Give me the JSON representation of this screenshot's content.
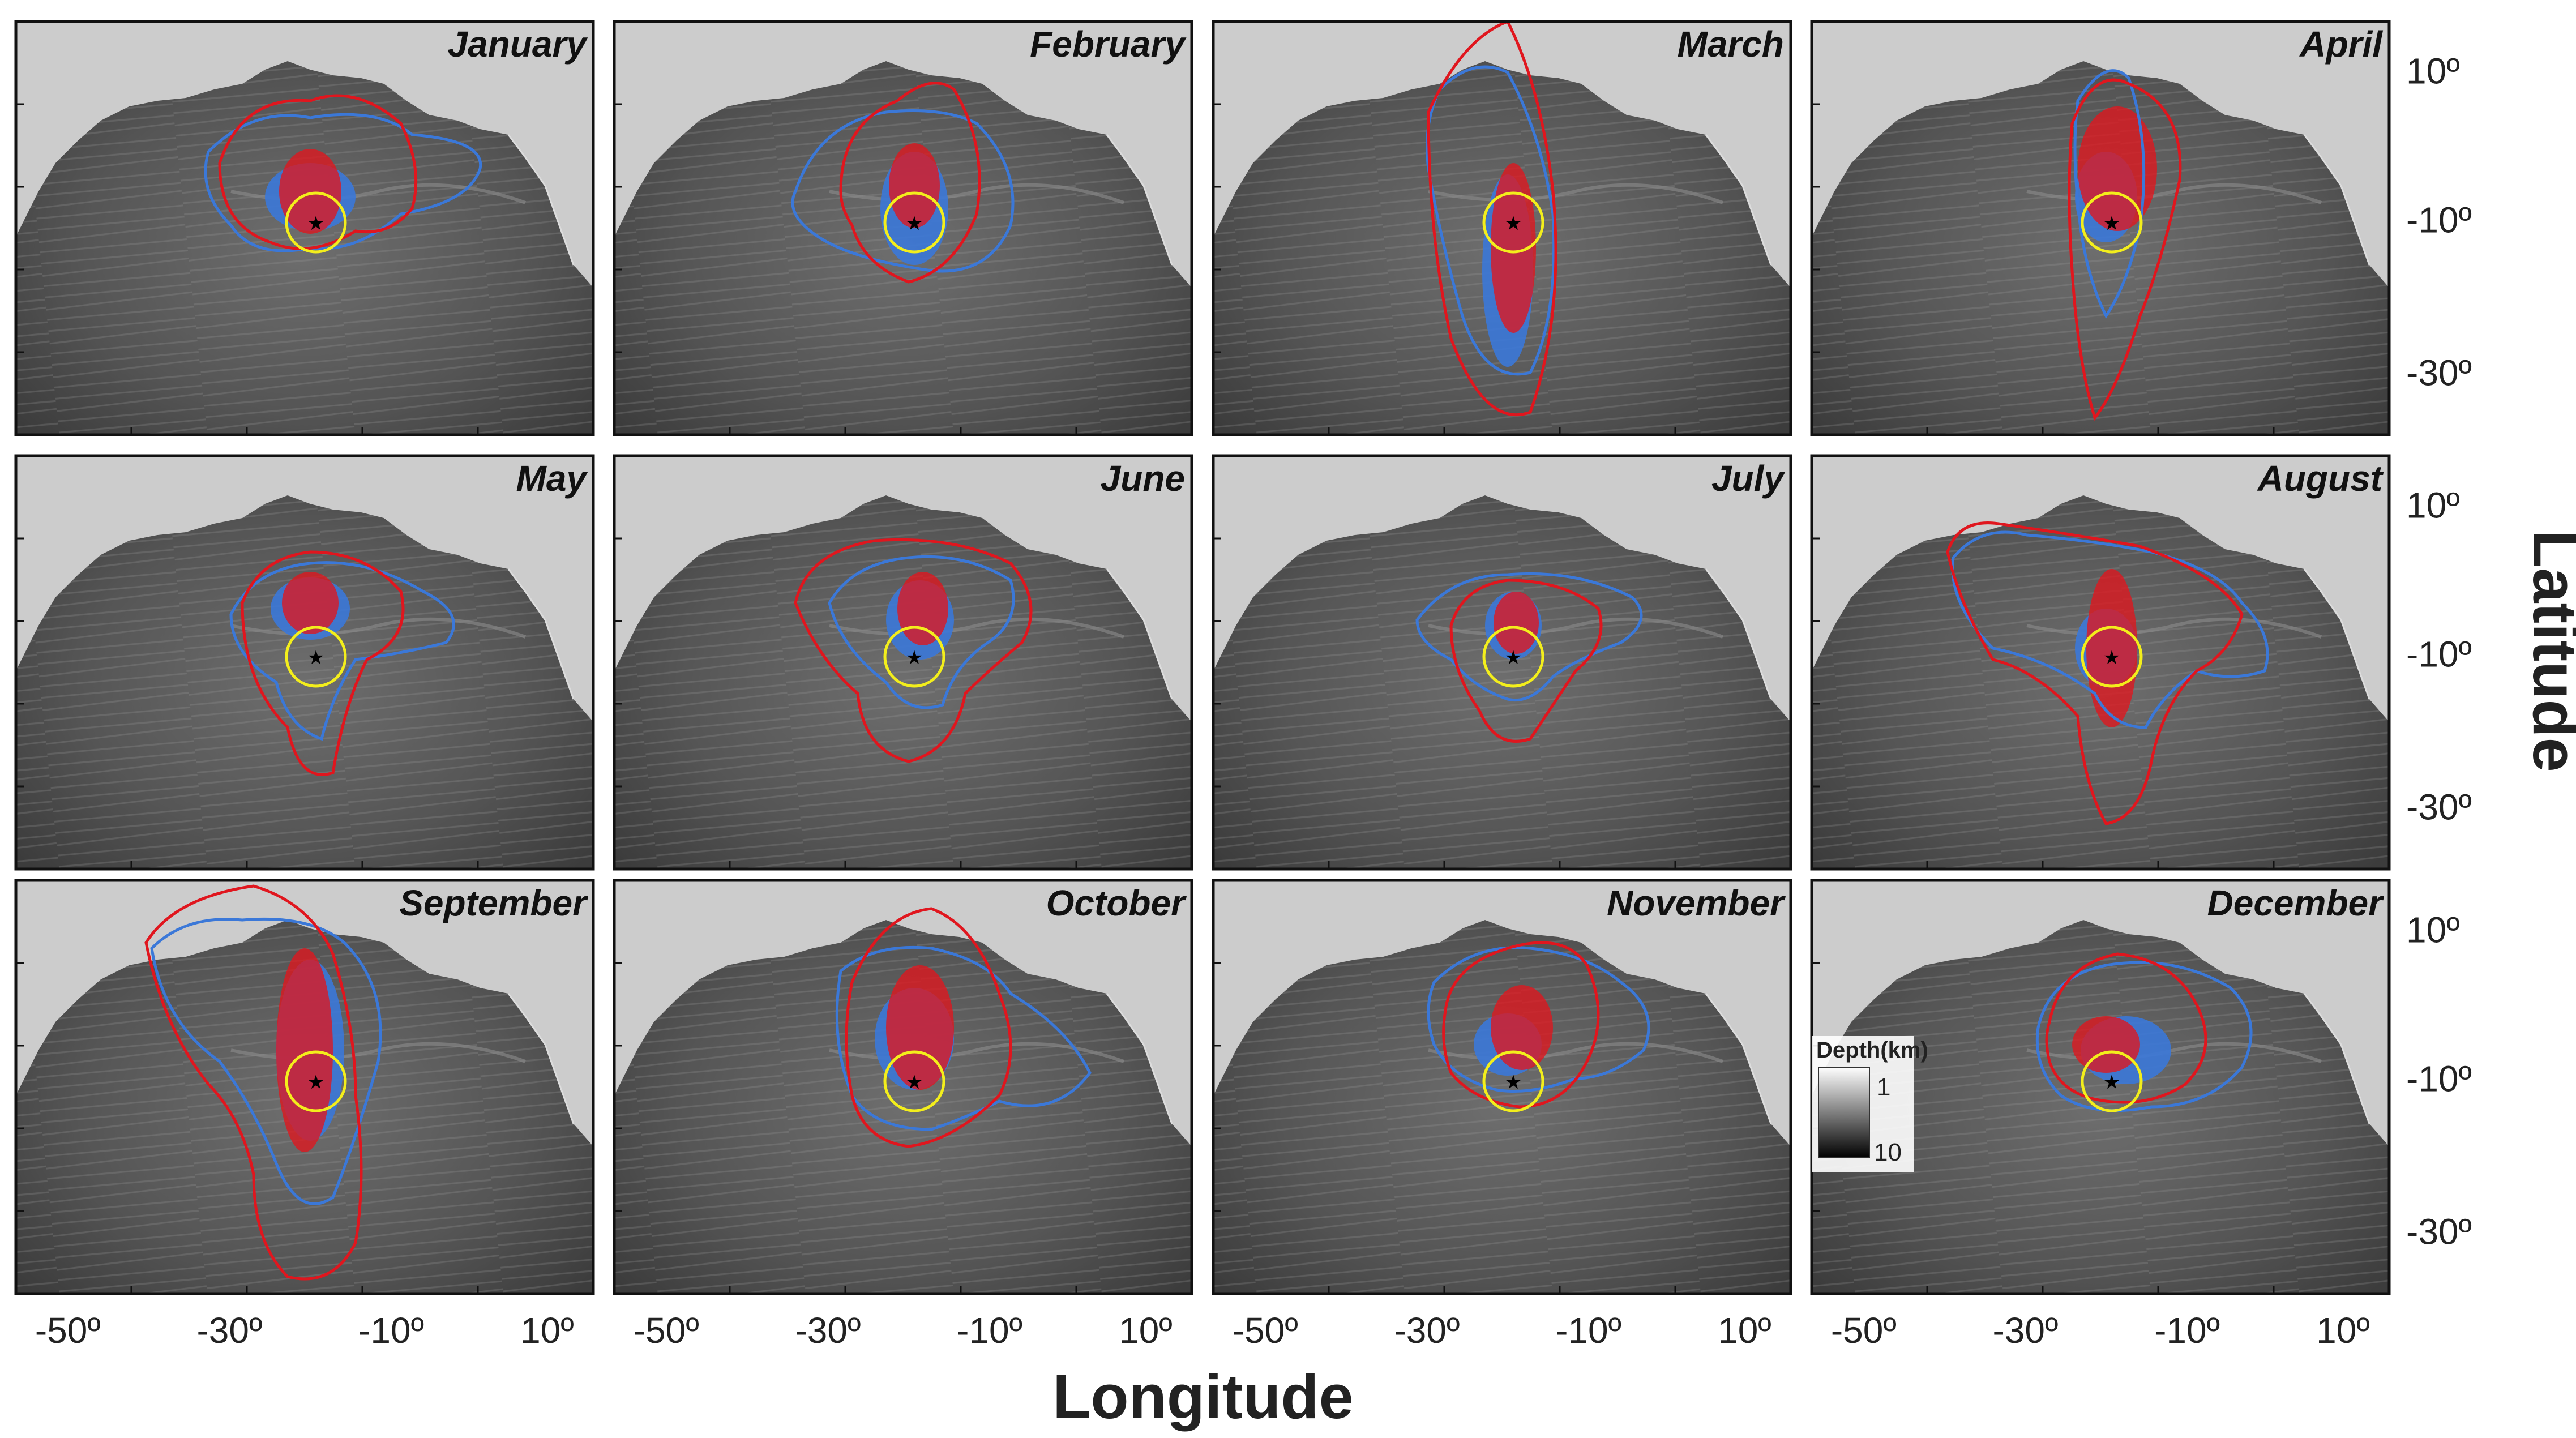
{
  "axes": {
    "x_title": "Longitude",
    "y_title": "Latitude",
    "x_ticks": [
      "-50º",
      "-30º",
      "-10º",
      "10º"
    ],
    "y_ticks": [
      "10º",
      "-10º",
      "-30º"
    ]
  },
  "legend": {
    "title": "Depth(km)",
    "min_label": "1",
    "max_label": "10"
  },
  "colors": {
    "blue": "#3b78d8",
    "red": "#e0161e",
    "yellow": "#f3ee1c",
    "ocean_dark": "#3a3a3a",
    "ocean_light": "#8a8a8a",
    "land": "#ffffff",
    "frame": "#111111"
  },
  "panels": [
    {
      "month": "January"
    },
    {
      "month": "February"
    },
    {
      "month": "March"
    },
    {
      "month": "April"
    },
    {
      "month": "May"
    },
    {
      "month": "June"
    },
    {
      "month": "July"
    },
    {
      "month": "August"
    },
    {
      "month": "September"
    },
    {
      "month": "October"
    },
    {
      "month": "November"
    },
    {
      "month": "December"
    }
  ]
}
